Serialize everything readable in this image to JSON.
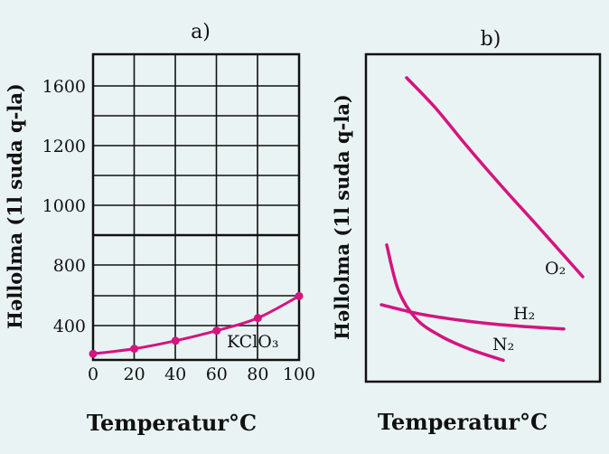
{
  "colors": {
    "background": "#eaf3f3",
    "curve": "#d4147f",
    "axis": "#111111"
  },
  "chart_data": [
    {
      "panel": "a)",
      "type": "line",
      "ylabel": "Həllolma (1l suda q-la)",
      "xlabel": "Temperatur°C",
      "xticks": [
        "0",
        "20",
        "40",
        "60",
        "80",
        "100"
      ],
      "yticks": [
        "400",
        "800",
        "1000",
        "1200",
        "1600"
      ],
      "xlim": [
        0,
        100
      ],
      "grid": true,
      "series": [
        {
          "name": "KClO3",
          "label": "KClO₃",
          "x": [
            0,
            20,
            40,
            60,
            80,
            100
          ],
          "y": [
            205,
            240,
            295,
            365,
            450,
            595
          ]
        }
      ]
    },
    {
      "panel": "b)",
      "type": "line",
      "ylabel": "Həllolma (1l suda q-la)",
      "xlabel": "Temperatur°C",
      "grid": false,
      "series": [
        {
          "name": "O2",
          "label": "O₂",
          "x": [
            0,
            0.16,
            0.34,
            0.54,
            0.76,
            1.0
          ],
          "y": [
            1.0,
            0.87,
            0.7,
            0.52,
            0.33,
            0.12
          ]
        },
        {
          "name": "H2",
          "label": "H₂",
          "x": [
            0,
            0.2,
            0.4,
            0.6,
            0.8,
            1.0
          ],
          "y": [
            0.42,
            0.3,
            0.22,
            0.16,
            0.12,
            0.09
          ]
        },
        {
          "name": "N2",
          "label": "N₂",
          "x": [
            0,
            0.1,
            0.25,
            0.45,
            0.7,
            1.0
          ],
          "y": [
            0.72,
            0.45,
            0.28,
            0.18,
            0.1,
            0.03
          ]
        }
      ]
    }
  ]
}
